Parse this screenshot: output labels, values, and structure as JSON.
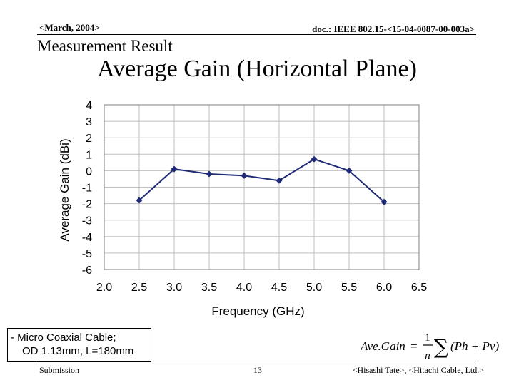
{
  "header": {
    "date": "<March, 2004>",
    "doc": "doc.: IEEE 802.15-<15-04-0087-00-003a>"
  },
  "slide": {
    "subtitle": "Measurement Result",
    "title": "Average Gain (Horizontal Plane)"
  },
  "note": {
    "line1": "- Micro Coaxial Cable;",
    "line2": "OD 1.13mm, L=180mm"
  },
  "formula": {
    "lhs": "Ave.Gain",
    "equals": "=",
    "numerator": "1",
    "denominator": "n",
    "sum": "∑",
    "body": "(Ph + Pv)"
  },
  "footer": {
    "left": "Submission",
    "page": "13",
    "right": "<Hisashi Tate>, <Hitachi Cable, Ltd.>"
  },
  "colors": {
    "series": "#1f2a78",
    "grid": "#bfbfbf"
  },
  "chart_data": {
    "type": "line",
    "title": "",
    "xlabel": "Frequency (GHz)",
    "ylabel": "Average Gain (dBi)",
    "xlim": [
      2.0,
      6.5
    ],
    "ylim": [
      -6,
      4
    ],
    "xticks": [
      "2.0",
      "2.5",
      "3.0",
      "3.5",
      "4.0",
      "4.5",
      "5.0",
      "5.5",
      "6.0",
      "6.5"
    ],
    "yticks": [
      "4",
      "3",
      "2",
      "1",
      "0",
      "-1",
      "-2",
      "-3",
      "-4",
      "-5",
      "-6"
    ],
    "grid": true,
    "legend": "none",
    "x": [
      2.5,
      3.0,
      3.5,
      4.0,
      4.5,
      5.0,
      5.5,
      6.0
    ],
    "series": [
      {
        "values": [
          -1.8,
          0.1,
          -0.2,
          -0.3,
          -0.6,
          0.7,
          0.0,
          -1.9
        ]
      }
    ]
  }
}
